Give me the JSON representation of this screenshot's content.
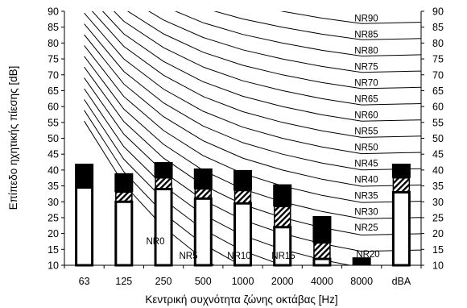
{
  "chart_data": {
    "type": "bar",
    "title": "",
    "xlabel": "Κεντρική συχνότητα ζώνης οκτάβας [Hz]",
    "ylabel": "Επίπεδο ηχητικής πίεσης [dB]",
    "ylim": [
      10,
      90
    ],
    "yticks": [
      10,
      15,
      20,
      25,
      30,
      35,
      40,
      45,
      50,
      55,
      60,
      65,
      70,
      75,
      80,
      85,
      90
    ],
    "categories": [
      "63",
      "125",
      "250",
      "500",
      "1000",
      "2000",
      "4000",
      "8000",
      "dBA"
    ],
    "series": [
      {
        "values": [
          34.5,
          30,
          34,
          31,
          29.5,
          22,
          12,
          10,
          33
        ]
      },
      {
        "values": [
          34.5,
          33,
          37.5,
          34,
          33.5,
          28.5,
          17,
          10,
          37.5
        ]
      },
      {
        "values": [
          42,
          39,
          42.5,
          40.5,
          40,
          35.5,
          25.5,
          12.5,
          42
        ]
      }
    ],
    "nr_curves": {
      "labels": [
        "NR0",
        "NR5",
        "NR10",
        "NR15",
        "NR20",
        "NR25",
        "NR30",
        "NR35",
        "NR40",
        "NR45",
        "NR50",
        "NR55",
        "NR60",
        "NR65",
        "NR70",
        "NR75",
        "NR80",
        "NR85",
        "NR90"
      ],
      "levels": [
        0,
        5,
        10,
        15,
        20,
        25,
        30,
        35,
        40,
        45,
        50,
        55,
        60,
        65,
        70,
        75,
        80,
        85,
        90
      ],
      "a": [
        55.4,
        35.5,
        22.0,
        12.0,
        4.8,
        0,
        -3.5,
        -6.1
      ],
      "b": [
        0.681,
        0.79,
        0.87,
        0.93,
        0.974,
        1.0,
        1.015,
        1.025
      ]
    },
    "grid": false,
    "legend": "none"
  },
  "colors": {
    "bar_fill": "#ffffff",
    "bar_outline": "#000000",
    "top_segment": "#000000",
    "hatch": "#000000",
    "curve": "#000000"
  }
}
